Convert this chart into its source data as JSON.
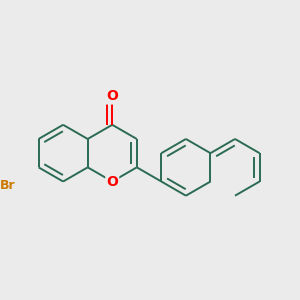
{
  "background_color": "#ebebeb",
  "bond_color": "#2a6b52",
  "oxygen_color": "#ff0000",
  "bromine_color": "#cc7a00",
  "bond_width": 1.4,
  "dbo": 0.07,
  "font_size_O": 10,
  "font_size_Br": 9,
  "fig_size": [
    3.0,
    3.0
  ],
  "dpi": 100,
  "xlim": [
    -1.7,
    1.9
  ],
  "ylim": [
    -1.5,
    1.4
  ]
}
